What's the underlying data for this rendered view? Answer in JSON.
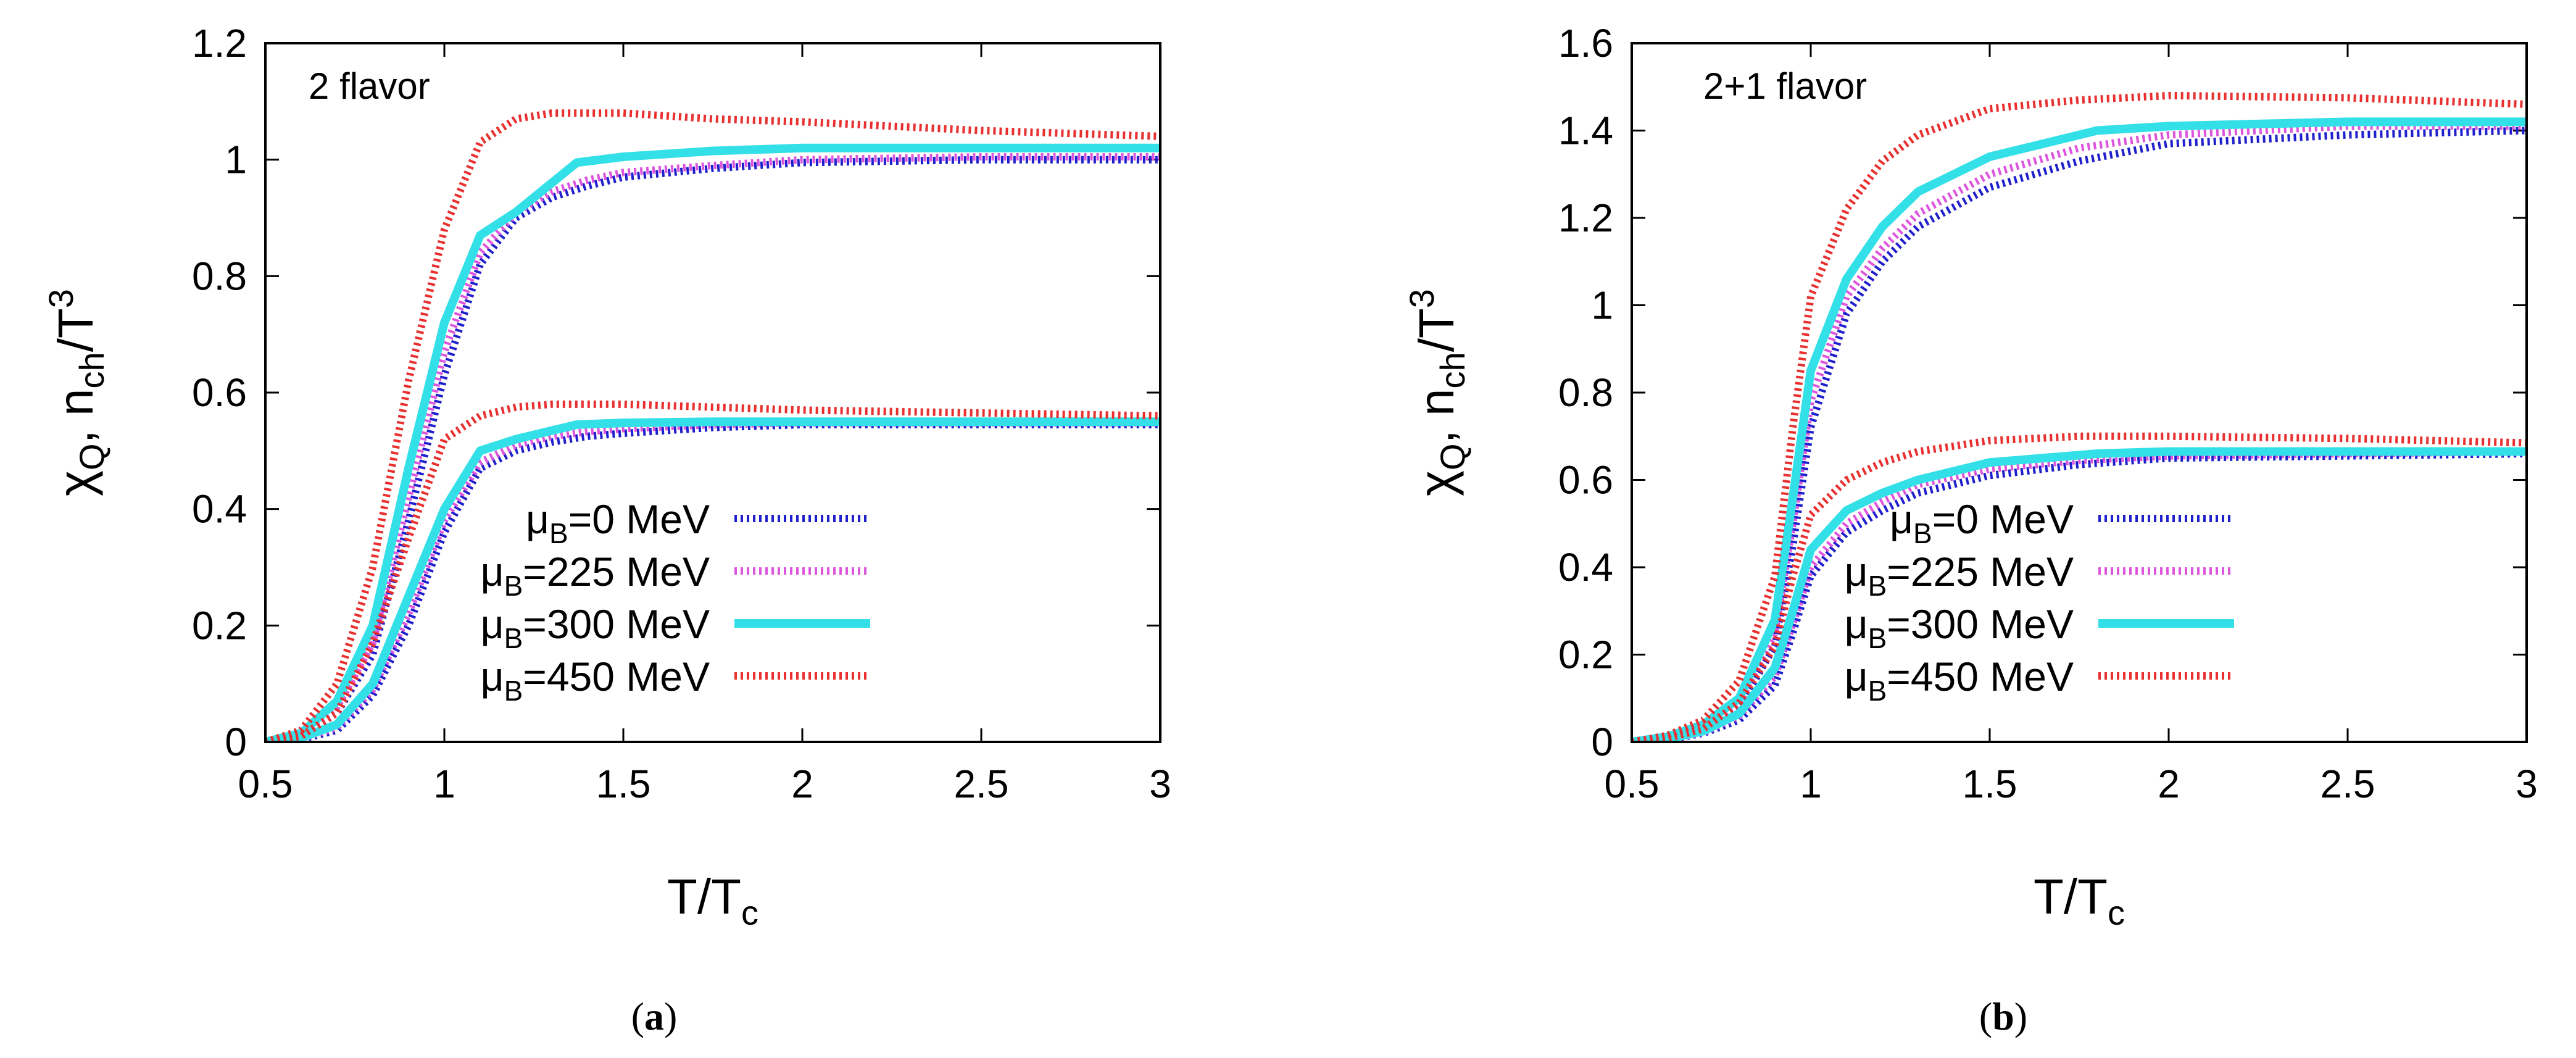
{
  "chart_data": [
    {
      "type": "line",
      "panel_label": "a",
      "annotation": "2 flavor",
      "xlabel": {
        "main": "T/T",
        "sub": "c"
      },
      "ylabel": {
        "chi": "χ",
        "chi_sub": "Q",
        "sep": ", n",
        "n_sub": "ch",
        "tail": "/T",
        "sup": "3"
      },
      "xlim": [
        0.5,
        3
      ],
      "ylim": [
        0,
        1.2
      ],
      "xticks": [
        0.5,
        1,
        1.5,
        2,
        2.5,
        3
      ],
      "xtick_labels": [
        "0.5",
        "1",
        "1.5",
        "2",
        "2.5",
        "3"
      ],
      "yticks": [
        0,
        0.2,
        0.4,
        0.6,
        0.8,
        1,
        1.2
      ],
      "ytick_labels": [
        "0",
        "0.2",
        "0.4",
        "0.6",
        "0.8",
        "1",
        "1.2"
      ],
      "legend_position": "bottom-right",
      "series": [
        {
          "name": "μB=0 MeV",
          "label_mu": "μ",
          "label_sub": "B",
          "label_rest": "=0 MeV",
          "color": "#1f1fcc",
          "style": "dotted-thick",
          "upper": {
            "x": [
              0.5,
              0.6,
              0.7,
              0.8,
              0.9,
              1.0,
              1.1,
              1.2,
              1.3,
              1.4,
              1.5,
              1.75,
              2.0,
              2.5,
              3.0
            ],
            "y": [
              0,
              0.01,
              0.05,
              0.15,
              0.38,
              0.63,
              0.82,
              0.9,
              0.935,
              0.955,
              0.97,
              0.985,
              0.995,
              1.0,
              1.0
            ]
          },
          "lower": {
            "x": [
              0.5,
              0.6,
              0.7,
              0.8,
              0.9,
              1.0,
              1.1,
              1.2,
              1.3,
              1.4,
              1.5,
              1.75,
              2.0,
              2.5,
              3.0
            ],
            "y": [
              0,
              0.005,
              0.02,
              0.08,
              0.2,
              0.36,
              0.47,
              0.5,
              0.515,
              0.525,
              0.53,
              0.54,
              0.545,
              0.545,
              0.545
            ]
          }
        },
        {
          "name": "μB=225 MeV",
          "label_mu": "μ",
          "label_sub": "B",
          "label_rest": "=225 MeV",
          "color": "#dd55dd",
          "style": "dotted-thick",
          "upper": {
            "x": [
              0.5,
              0.6,
              0.7,
              0.8,
              0.9,
              1.0,
              1.1,
              1.2,
              1.3,
              1.4,
              1.5,
              1.75,
              2.0,
              2.5,
              3.0
            ],
            "y": [
              0,
              0.012,
              0.06,
              0.17,
              0.42,
              0.67,
              0.84,
              0.91,
              0.945,
              0.965,
              0.978,
              0.99,
              1.0,
              1.005,
              1.005
            ]
          },
          "lower": {
            "x": [
              0.5,
              0.6,
              0.7,
              0.8,
              0.9,
              1.0,
              1.1,
              1.2,
              1.3,
              1.4,
              1.5,
              1.75,
              2.0,
              2.5,
              3.0
            ],
            "y": [
              0,
              0.006,
              0.025,
              0.09,
              0.22,
              0.38,
              0.48,
              0.51,
              0.525,
              0.533,
              0.538,
              0.545,
              0.548,
              0.548,
              0.548
            ]
          }
        },
        {
          "name": "μB=300 MeV",
          "label_mu": "μ",
          "label_sub": "B",
          "label_rest": "=300 MeV",
          "color": "#33e0e8",
          "style": "solid-thick",
          "upper": {
            "x": [
              0.5,
              0.6,
              0.7,
              0.8,
              0.9,
              1.0,
              1.1,
              1.2,
              1.37,
              1.5,
              1.75,
              2.0,
              2.5,
              3.0
            ],
            "y": [
              0,
              0.015,
              0.07,
              0.2,
              0.47,
              0.72,
              0.87,
              0.91,
              0.995,
              1.005,
              1.015,
              1.02,
              1.02,
              1.02
            ]
          },
          "lower": {
            "x": [
              0.5,
              0.6,
              0.7,
              0.8,
              0.9,
              1.0,
              1.1,
              1.2,
              1.37,
              1.5,
              1.75,
              2.0,
              2.5,
              3.0
            ],
            "y": [
              0,
              0.007,
              0.03,
              0.1,
              0.25,
              0.4,
              0.5,
              0.52,
              0.545,
              0.548,
              0.55,
              0.55,
              0.55,
              0.55
            ]
          }
        },
        {
          "name": "μB=450 MeV",
          "label_mu": "μ",
          "label_sub": "B",
          "label_rest": "=450 MeV",
          "color": "#e83030",
          "style": "dotted-thick",
          "upper": {
            "x": [
              0.5,
              0.6,
              0.7,
              0.8,
              0.9,
              1.0,
              1.1,
              1.2,
              1.3,
              1.5,
              1.75,
              2.0,
              2.5,
              3.0
            ],
            "y": [
              0,
              0.02,
              0.1,
              0.3,
              0.62,
              0.88,
              1.03,
              1.07,
              1.08,
              1.08,
              1.07,
              1.065,
              1.05,
              1.04
            ]
          },
          "lower": {
            "x": [
              0.5,
              0.6,
              0.7,
              0.8,
              0.9,
              1.0,
              1.1,
              1.2,
              1.3,
              1.5,
              1.75,
              2.0,
              2.5,
              3.0
            ],
            "y": [
              0,
              0.01,
              0.05,
              0.17,
              0.35,
              0.52,
              0.56,
              0.575,
              0.58,
              0.58,
              0.575,
              0.57,
              0.565,
              0.56
            ]
          }
        }
      ]
    },
    {
      "type": "line",
      "panel_label": "b",
      "annotation": "2+1 flavor",
      "xlabel": {
        "main": "T/T",
        "sub": "c"
      },
      "ylabel": {
        "chi": "χ",
        "chi_sub": "Q",
        "sep": ", n",
        "n_sub": "ch",
        "tail": "/T",
        "sup": "3"
      },
      "xlim": [
        0.5,
        3
      ],
      "ylim": [
        0,
        1.6
      ],
      "xticks": [
        0.5,
        1,
        1.5,
        2,
        2.5,
        3
      ],
      "xtick_labels": [
        "0.5",
        "1",
        "1.5",
        "2",
        "2.5",
        "3"
      ],
      "yticks": [
        0,
        0.2,
        0.4,
        0.6,
        0.8,
        1,
        1.2,
        1.4,
        1.6
      ],
      "ytick_labels": [
        "0",
        "0.2",
        "0.4",
        "0.6",
        "0.8",
        "1",
        "1.2",
        "1.4",
        "1.6"
      ],
      "legend_position": "bottom-right",
      "series": [
        {
          "name": "μB=0 MeV",
          "label_mu": "μ",
          "label_sub": "B",
          "label_rest": "=0 MeV",
          "color": "#1f1fcc",
          "style": "dotted-thick",
          "upper": {
            "x": [
              0.5,
              0.6,
              0.7,
              0.8,
              0.9,
              0.95,
              1.0,
              1.1,
              1.2,
              1.3,
              1.5,
              1.75,
              2.0,
              2.5,
              3.0
            ],
            "y": [
              0,
              0.01,
              0.03,
              0.08,
              0.22,
              0.45,
              0.72,
              0.98,
              1.1,
              1.18,
              1.27,
              1.33,
              1.37,
              1.39,
              1.4
            ]
          },
          "lower": {
            "x": [
              0.5,
              0.6,
              0.7,
              0.8,
              0.9,
              0.95,
              1.0,
              1.1,
              1.2,
              1.3,
              1.5,
              1.75,
              2.0,
              2.5,
              3.0
            ],
            "y": [
              0,
              0.005,
              0.02,
              0.05,
              0.13,
              0.25,
              0.38,
              0.48,
              0.53,
              0.57,
              0.61,
              0.635,
              0.65,
              0.655,
              0.66
            ]
          }
        },
        {
          "name": "μB=225 MeV",
          "label_mu": "μ",
          "label_sub": "B",
          "label_rest": "=225 MeV",
          "color": "#dd55dd",
          "style": "dotted-thick",
          "upper": {
            "x": [
              0.5,
              0.6,
              0.7,
              0.8,
              0.9,
              0.95,
              1.0,
              1.1,
              1.2,
              1.3,
              1.5,
              1.75,
              2.0,
              2.5,
              3.0
            ],
            "y": [
              0,
              0.01,
              0.035,
              0.09,
              0.25,
              0.5,
              0.78,
              1.02,
              1.13,
              1.21,
              1.3,
              1.36,
              1.39,
              1.41,
              1.41
            ]
          },
          "lower": {
            "x": [
              0.5,
              0.6,
              0.7,
              0.8,
              0.9,
              0.95,
              1.0,
              1.1,
              1.2,
              1.3,
              1.5,
              1.75,
              2.0,
              2.5,
              3.0
            ],
            "y": [
              0,
              0.006,
              0.022,
              0.06,
              0.15,
              0.27,
              0.4,
              0.5,
              0.55,
              0.59,
              0.625,
              0.645,
              0.655,
              0.66,
              0.665
            ]
          }
        },
        {
          "name": "μB=300 MeV",
          "label_mu": "μ",
          "label_sub": "B",
          "label_rest": "=300 MeV",
          "color": "#33e0e8",
          "style": "solid-thick",
          "upper": {
            "x": [
              0.5,
              0.6,
              0.7,
              0.8,
              0.9,
              0.95,
              1.0,
              1.1,
              1.2,
              1.3,
              1.5,
              1.8,
              2.0,
              2.5,
              3.0
            ],
            "y": [
              0,
              0.012,
              0.04,
              0.1,
              0.28,
              0.56,
              0.85,
              1.06,
              1.18,
              1.26,
              1.34,
              1.4,
              1.41,
              1.42,
              1.42
            ]
          },
          "lower": {
            "x": [
              0.5,
              0.6,
              0.7,
              0.8,
              0.9,
              0.95,
              1.0,
              1.1,
              1.2,
              1.3,
              1.5,
              1.8,
              2.0,
              2.5,
              3.0
            ],
            "y": [
              0,
              0.007,
              0.025,
              0.065,
              0.17,
              0.3,
              0.44,
              0.53,
              0.57,
              0.6,
              0.64,
              0.66,
              0.665,
              0.665,
              0.665
            ]
          }
        },
        {
          "name": "μB=450 MeV",
          "label_mu": "μ",
          "label_sub": "B",
          "label_rest": "=450 MeV",
          "color": "#e83030",
          "style": "dotted-thick",
          "upper": {
            "x": [
              0.5,
              0.6,
              0.7,
              0.8,
              0.9,
              0.95,
              1.0,
              1.1,
              1.2,
              1.3,
              1.5,
              1.75,
              2.0,
              2.5,
              3.0
            ],
            "y": [
              0,
              0.015,
              0.05,
              0.14,
              0.38,
              0.72,
              1.02,
              1.22,
              1.33,
              1.39,
              1.45,
              1.47,
              1.48,
              1.475,
              1.46
            ]
          },
          "lower": {
            "x": [
              0.5,
              0.6,
              0.7,
              0.8,
              0.9,
              0.95,
              1.0,
              1.1,
              1.2,
              1.3,
              1.5,
              1.75,
              2.0,
              2.5,
              3.0
            ],
            "y": [
              0,
              0.008,
              0.03,
              0.09,
              0.22,
              0.38,
              0.52,
              0.6,
              0.64,
              0.665,
              0.69,
              0.7,
              0.7,
              0.695,
              0.685
            ]
          }
        }
      ]
    }
  ]
}
